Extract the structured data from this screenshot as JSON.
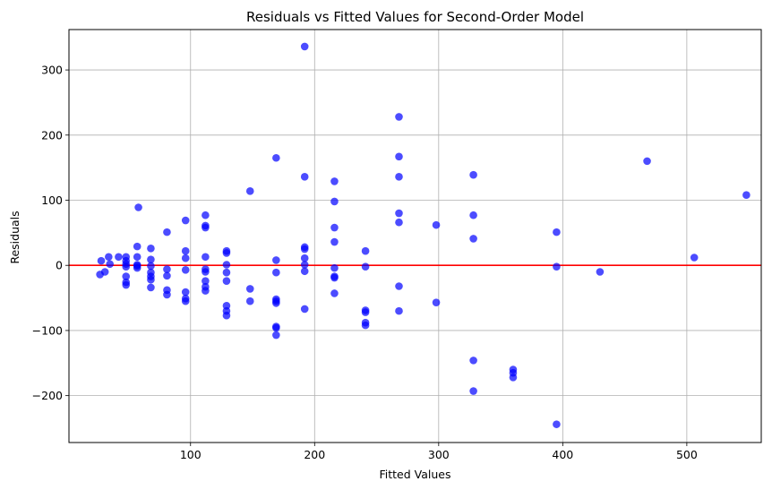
{
  "chart_data": {
    "type": "scatter",
    "title": "Residuals vs Fitted Values for Second-Order Model",
    "xlabel": "Fitted Values",
    "ylabel": "Residuals",
    "xlim": [
      2,
      560
    ],
    "ylim": [
      -272,
      362
    ],
    "xticks": [
      100,
      200,
      300,
      400,
      500
    ],
    "yticks": [
      -200,
      -100,
      0,
      100,
      200,
      300
    ],
    "grid": true,
    "reference_line": {
      "y": 0,
      "color": "#ff0000"
    },
    "marker_color": "#0000ff",
    "marker_opacity": 0.7,
    "points": [
      [
        27,
        -14
      ],
      [
        28,
        7
      ],
      [
        31,
        -10
      ],
      [
        34,
        13
      ],
      [
        35,
        2
      ],
      [
        42,
        13
      ],
      [
        48,
        13
      ],
      [
        48,
        7
      ],
      [
        48,
        2
      ],
      [
        48,
        -2
      ],
      [
        48,
        -17
      ],
      [
        48,
        -26
      ],
      [
        48,
        -30
      ],
      [
        57,
        29
      ],
      [
        57,
        13
      ],
      [
        57,
        1
      ],
      [
        57,
        -1
      ],
      [
        57,
        -4
      ],
      [
        58,
        89
      ],
      [
        68,
        26
      ],
      [
        68,
        9
      ],
      [
        68,
        -1
      ],
      [
        68,
        -11
      ],
      [
        68,
        -17
      ],
      [
        68,
        -22
      ],
      [
        68,
        -34
      ],
      [
        81,
        51
      ],
      [
        81,
        -6
      ],
      [
        81,
        -16
      ],
      [
        81,
        -38
      ],
      [
        81,
        -45
      ],
      [
        96,
        69
      ],
      [
        96,
        22
      ],
      [
        96,
        11
      ],
      [
        96,
        -7
      ],
      [
        96,
        -41
      ],
      [
        96,
        -51
      ],
      [
        96,
        -55
      ],
      [
        112,
        77
      ],
      [
        112,
        61
      ],
      [
        112,
        58
      ],
      [
        112,
        13
      ],
      [
        112,
        -6
      ],
      [
        112,
        -10
      ],
      [
        112,
        -24
      ],
      [
        112,
        -33
      ],
      [
        112,
        -39
      ],
      [
        129,
        22
      ],
      [
        129,
        19
      ],
      [
        129,
        1
      ],
      [
        129,
        -11
      ],
      [
        129,
        -24
      ],
      [
        129,
        -62
      ],
      [
        129,
        -70
      ],
      [
        129,
        -77
      ],
      [
        148,
        114
      ],
      [
        148,
        -36
      ],
      [
        148,
        -55
      ],
      [
        169,
        165
      ],
      [
        169,
        8
      ],
      [
        169,
        -11
      ],
      [
        169,
        -52
      ],
      [
        169,
        -55
      ],
      [
        169,
        -58
      ],
      [
        169,
        -94
      ],
      [
        169,
        -96
      ],
      [
        169,
        -107
      ],
      [
        192,
        336
      ],
      [
        192,
        136
      ],
      [
        192,
        28
      ],
      [
        192,
        25
      ],
      [
        192,
        11
      ],
      [
        192,
        1
      ],
      [
        192,
        -9
      ],
      [
        192,
        -67
      ],
      [
        216,
        129
      ],
      [
        216,
        98
      ],
      [
        216,
        58
      ],
      [
        216,
        36
      ],
      [
        216,
        -4
      ],
      [
        216,
        -17
      ],
      [
        216,
        -19
      ],
      [
        216,
        -43
      ],
      [
        241,
        22
      ],
      [
        241,
        -2
      ],
      [
        241,
        -69
      ],
      [
        241,
        -72
      ],
      [
        241,
        -88
      ],
      [
        241,
        -92
      ],
      [
        268,
        228
      ],
      [
        268,
        167
      ],
      [
        268,
        136
      ],
      [
        268,
        80
      ],
      [
        268,
        66
      ],
      [
        268,
        -32
      ],
      [
        268,
        -70
      ],
      [
        298,
        62
      ],
      [
        298,
        -57
      ],
      [
        328,
        139
      ],
      [
        328,
        77
      ],
      [
        328,
        41
      ],
      [
        328,
        -146
      ],
      [
        328,
        -193
      ],
      [
        360,
        -160
      ],
      [
        360,
        -165
      ],
      [
        360,
        -172
      ],
      [
        395,
        51
      ],
      [
        395,
        -2
      ],
      [
        395,
        -244
      ],
      [
        430,
        -10
      ],
      [
        468,
        160
      ],
      [
        506,
        12
      ],
      [
        548,
        108
      ]
    ]
  }
}
